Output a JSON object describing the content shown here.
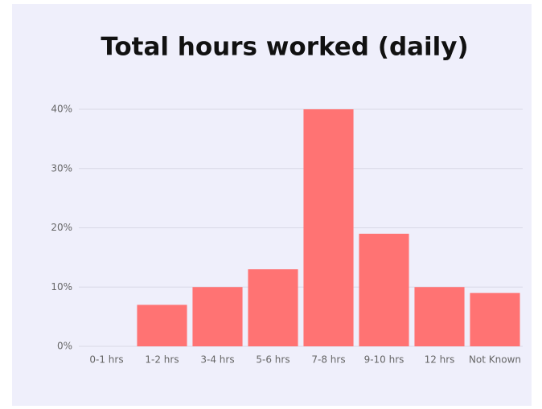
{
  "chart_data": {
    "type": "bar",
    "title": "Total hours worked (daily)",
    "categories": [
      "0-1 hrs",
      "1-2 hrs",
      "3-4 hrs",
      "5-6 hrs",
      "7-8 hrs",
      "9-10 hrs",
      "12 hrs",
      "Not Known"
    ],
    "values": [
      0,
      7,
      10,
      13,
      40,
      19,
      10,
      9
    ],
    "color": "#ff7373",
    "ylim": [
      0,
      40
    ],
    "yticks": [
      {
        "value": 0,
        "label": "0%"
      },
      {
        "value": 10,
        "label": "10%"
      },
      {
        "value": 20,
        "label": "20%"
      },
      {
        "value": 30,
        "label": "30%"
      },
      {
        "value": 40,
        "label": "40%"
      }
    ],
    "grid": true
  }
}
